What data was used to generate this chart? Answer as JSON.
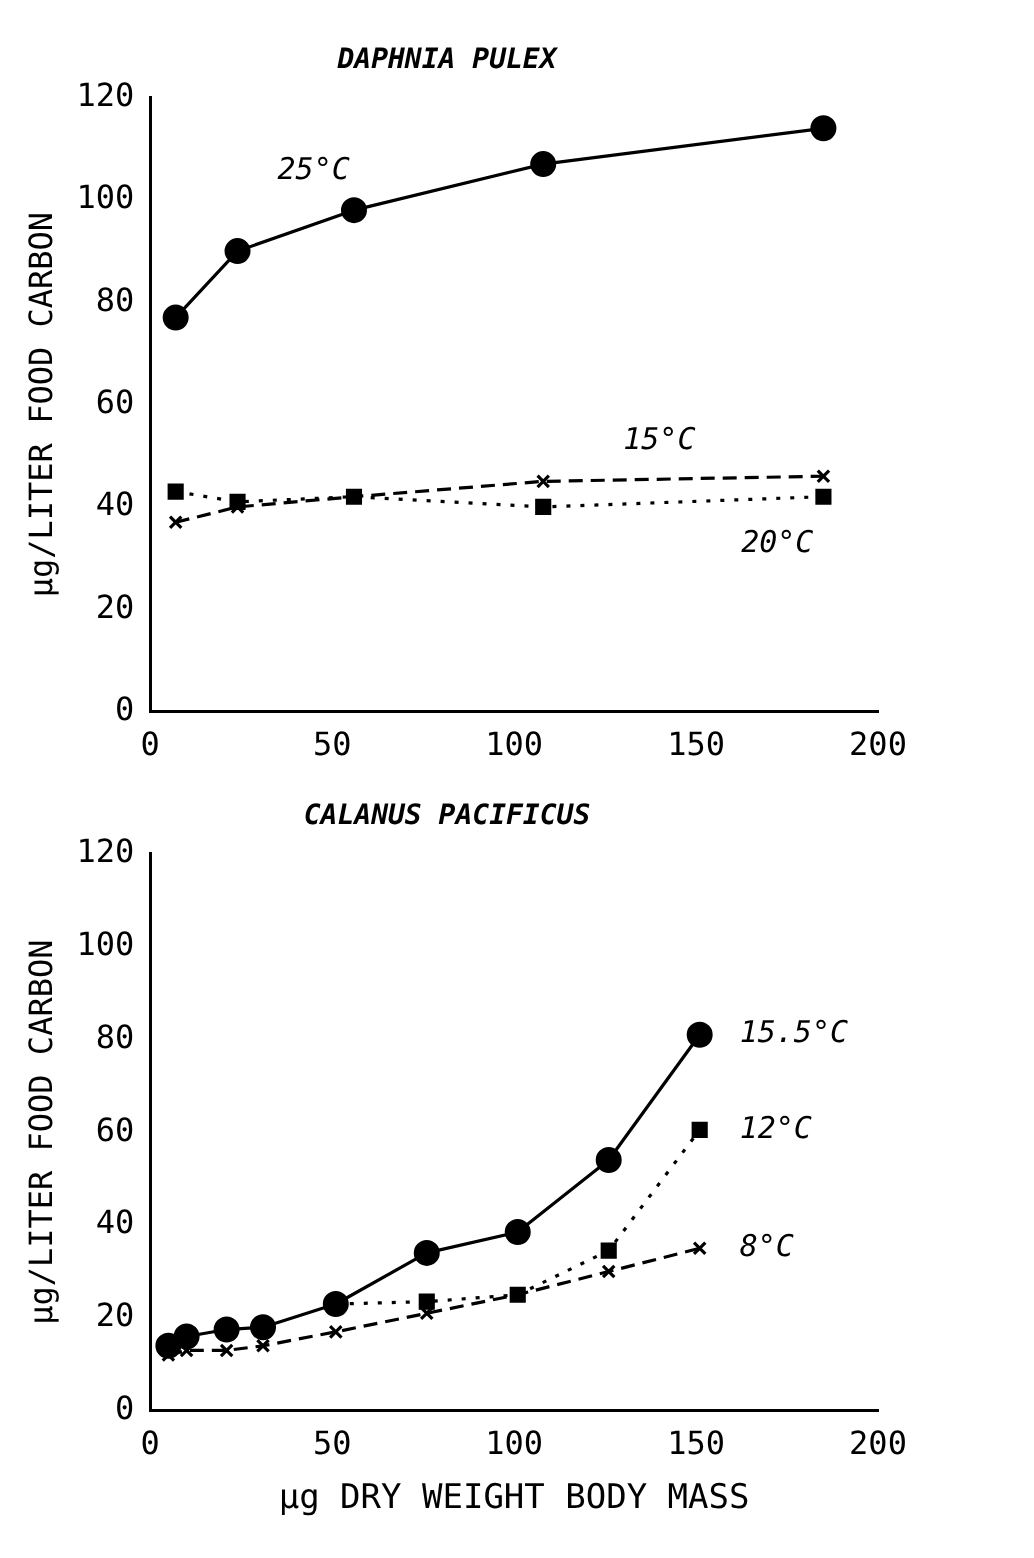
{
  "chart_data": [
    {
      "type": "line",
      "title": "DAPHNIA PULEX",
      "ylabel": "μg/LITER FOOD CARBON",
      "xlim": [
        0,
        200
      ],
      "xticks": [
        0,
        50,
        100,
        150,
        200
      ],
      "ylim": [
        0,
        120
      ],
      "yticks": [
        0,
        20,
        40,
        60,
        80,
        100,
        120
      ],
      "grid": false,
      "legend": false,
      "series": [
        {
          "name": "25°C",
          "color": "#000000",
          "marker": "circle",
          "line_style": "solid",
          "x": [
            7,
            24,
            56,
            108,
            185
          ],
          "values": [
            77,
            90,
            98,
            107,
            114
          ]
        },
        {
          "name": "15°C",
          "color": "#000000",
          "marker": "cross",
          "line_style": "dashed",
          "x": [
            7,
            24,
            56,
            108,
            185
          ],
          "values": [
            37,
            40,
            42,
            45,
            46
          ]
        },
        {
          "name": "20°C",
          "color": "#000000",
          "marker": "square",
          "line_style": "dotted",
          "x": [
            7,
            24,
            56,
            108,
            185
          ],
          "values": [
            43,
            41,
            42,
            40,
            42
          ]
        }
      ]
    },
    {
      "type": "line",
      "title": "CALANUS PACIFICUS",
      "xlabel": "μg DRY WEIGHT BODY MASS",
      "ylabel": "μg/LITER FOOD CARBON",
      "xlim": [
        0,
        200
      ],
      "xticks": [
        0,
        50,
        100,
        150,
        200
      ],
      "ylim": [
        0,
        120
      ],
      "yticks": [
        0,
        20,
        40,
        60,
        80,
        100,
        120
      ],
      "grid": false,
      "legend": false,
      "series": [
        {
          "name": "15.5°C",
          "color": "#000000",
          "marker": "circle",
          "line_style": "solid",
          "x": [
            5,
            10,
            21,
            31,
            51,
            76,
            101,
            126,
            151
          ],
          "values": [
            14,
            16,
            17.5,
            18,
            23,
            34,
            38.5,
            54,
            81
          ]
        },
        {
          "name": "12°C",
          "color": "#000000",
          "marker": "square",
          "line_style": "dotted",
          "x": [
            51,
            76,
            101,
            126,
            151
          ],
          "values": [
            23,
            23.5,
            25,
            34.5,
            60.5
          ]
        },
        {
          "name": "8°C",
          "color": "#000000",
          "marker": "cross",
          "line_style": "dashed",
          "x": [
            5,
            10,
            21,
            31,
            51,
            76,
            101,
            126,
            151
          ],
          "values": [
            12,
            13,
            13,
            14,
            17,
            21,
            25,
            30,
            35
          ]
        }
      ]
    }
  ]
}
